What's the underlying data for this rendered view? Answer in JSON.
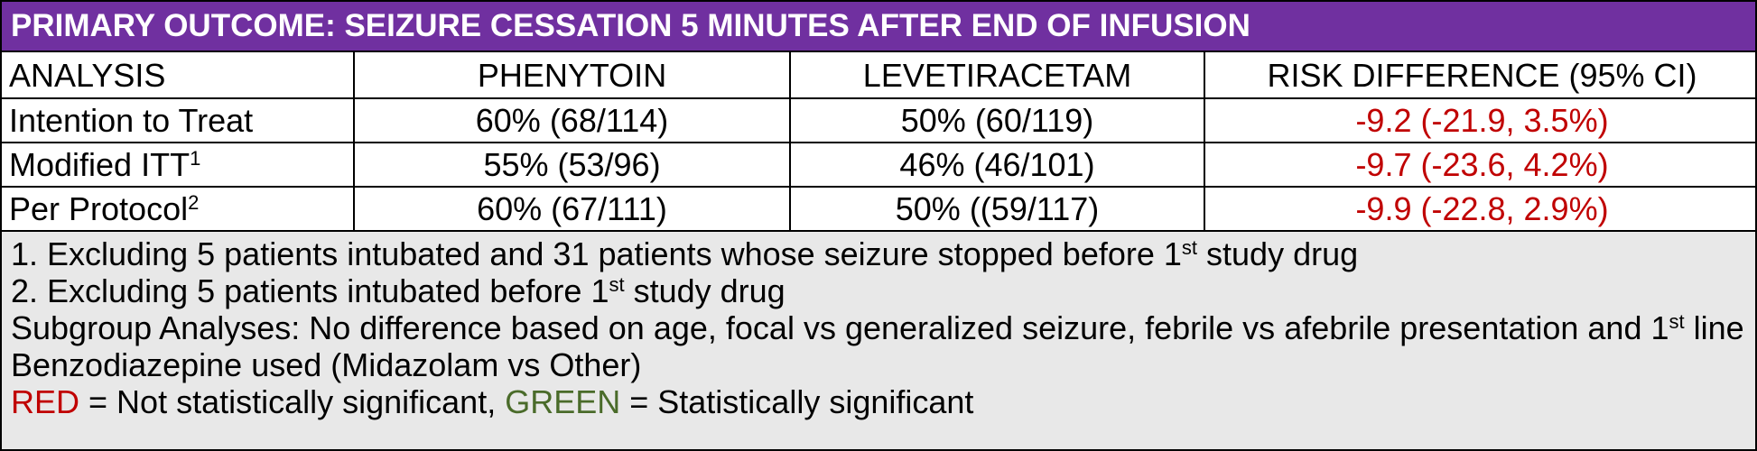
{
  "header": {
    "title": "PRIMARY OUTCOME: SEIZURE CESSATION 5 MINUTES AFTER END OF INFUSION"
  },
  "table": {
    "columns": [
      "ANALYSIS",
      "PHENYTOIN",
      "LEVETIRACETAM",
      "RISK DIFFERENCE (95% CI)"
    ],
    "rows": [
      [
        [
          "Intention to Treat"
        ],
        "60% (68/114)",
        "50% (60/119)",
        "-9.2 (-21.9, 3.5%)"
      ],
      [
        [
          "Modified ITT",
          "1"
        ],
        "55% (53/96)",
        "46% (46/101)",
        "-9.7 (-23.6, 4.2%)"
      ],
      [
        [
          "Per Protocol",
          "2"
        ],
        "60% (67/111)",
        "50% ((59/117)",
        "-9.9 (-22.8, 2.9%)"
      ]
    ]
  },
  "notes": {
    "lines": [
      [
        "1. Excluding 5 patients intubated and 31 patients whose seizure stopped before 1",
        "st",
        " study drug"
      ],
      [
        "2. Excluding 5 patients intubated before 1",
        "st",
        " study drug"
      ],
      [
        "Subgroup Analyses: No difference based on age, focal vs generalized seizure, febrile vs afebrile presentation and 1",
        "st",
        " line Benzodiazepine used (Midazolam vs Other)"
      ]
    ],
    "legend": [
      "RED",
      " = Not statistically significant, ",
      "GREEN",
      " = Statistically significant"
    ]
  }
}
